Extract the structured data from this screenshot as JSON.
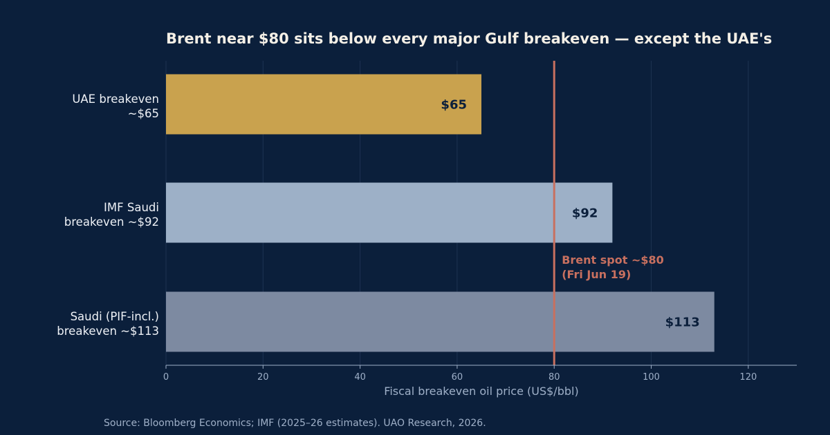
{
  "chart_data": {
    "type": "bar",
    "orientation": "horizontal",
    "title": "Brent near $80 sits below every major Gulf breakeven — except the UAE's",
    "xlabel": "Fiscal breakeven oil price (US$/bbl)",
    "ylabel": "",
    "xlim": [
      0,
      130
    ],
    "xticks": [
      0,
      20,
      40,
      60,
      80,
      100,
      120
    ],
    "grid": "vertical",
    "categories": [
      [
        "UAE breakeven",
        "~$65"
      ],
      [
        "IMF Saudi",
        "breakeven ~$92"
      ],
      [
        "Saudi (PIF-incl.)",
        "breakeven ~$113"
      ]
    ],
    "values": [
      65,
      92,
      113
    ],
    "value_labels": [
      "$65",
      "$92",
      "$113"
    ],
    "colors": [
      "#c9a24e",
      "#9db0c7",
      "#7d8aa1"
    ],
    "reference_line": {
      "value": 80,
      "label_lines": [
        "Brent spot ~$80",
        "(Fri Jun 19)"
      ],
      "color": "#c8705f"
    },
    "source": "Source: Bloomberg Economics; IMF (2025–26 estimates). UAO Research, 2026."
  }
}
